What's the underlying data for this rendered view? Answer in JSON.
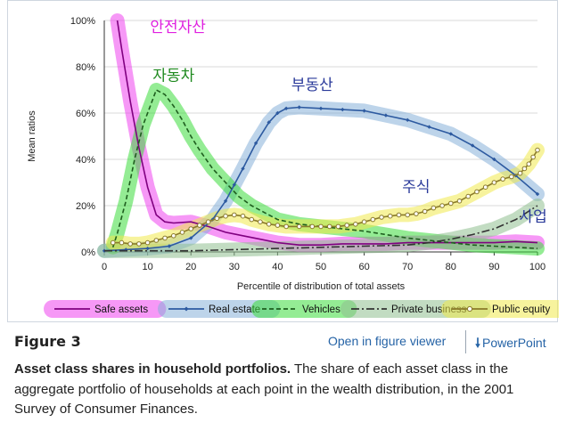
{
  "chart_data": {
    "type": "line",
    "title": "",
    "xlabel": "Percentile of distribution of total assets",
    "ylabel": "Mean ratios",
    "xlim": [
      0,
      100
    ],
    "ylim": [
      0,
      100
    ],
    "x_ticks": [
      "0",
      "10",
      "20",
      "30",
      "40",
      "50",
      "60",
      "70",
      "80",
      "90",
      "100"
    ],
    "y_ticks": [
      "0%",
      "20%",
      "40%",
      "60%",
      "80%",
      "100%"
    ],
    "series": [
      {
        "name": "Safe assets",
        "color": "#800080",
        "highlight": "#ee44ee",
        "style": "solid",
        "points": [
          [
            3,
            100
          ],
          [
            4,
            88
          ],
          [
            6,
            65
          ],
          [
            8,
            45
          ],
          [
            10,
            28
          ],
          [
            12,
            16
          ],
          [
            14,
            13
          ],
          [
            16,
            12.5
          ],
          [
            20,
            13
          ],
          [
            24,
            11
          ],
          [
            28,
            8.5
          ],
          [
            32,
            7
          ],
          [
            36,
            5.5
          ],
          [
            40,
            4
          ],
          [
            45,
            3
          ],
          [
            50,
            3
          ],
          [
            55,
            3.5
          ],
          [
            60,
            3.5
          ],
          [
            65,
            3.5
          ],
          [
            70,
            4
          ],
          [
            75,
            4
          ],
          [
            80,
            4
          ],
          [
            85,
            4
          ],
          [
            90,
            4
          ],
          [
            95,
            4.5
          ],
          [
            100,
            4
          ]
        ]
      },
      {
        "name": "Real estate",
        "color": "#2d5aa0",
        "highlight": "#86b0d8",
        "style": "diamond",
        "points": [
          [
            0,
            0.5
          ],
          [
            5,
            1
          ],
          [
            10,
            1.5
          ],
          [
            15,
            2.5
          ],
          [
            20,
            6
          ],
          [
            25,
            14
          ],
          [
            28,
            22
          ],
          [
            30,
            29
          ],
          [
            32,
            36
          ],
          [
            35,
            47
          ],
          [
            38,
            56
          ],
          [
            40,
            60
          ],
          [
            42,
            62
          ],
          [
            45,
            62.5
          ],
          [
            50,
            62
          ],
          [
            55,
            61.5
          ],
          [
            60,
            61
          ],
          [
            65,
            59
          ],
          [
            70,
            57
          ],
          [
            75,
            54
          ],
          [
            80,
            51
          ],
          [
            85,
            46
          ],
          [
            90,
            40
          ],
          [
            95,
            33
          ],
          [
            100,
            25
          ]
        ]
      },
      {
        "name": "Vehicles",
        "color": "#1e5e1e",
        "highlight": "#3ddc3d",
        "style": "dashed",
        "points": [
          [
            2,
            2
          ],
          [
            3,
            8
          ],
          [
            5,
            22
          ],
          [
            7,
            40
          ],
          [
            9,
            55
          ],
          [
            11,
            65
          ],
          [
            12,
            70
          ],
          [
            14,
            68
          ],
          [
            16,
            63
          ],
          [
            18,
            57
          ],
          [
            20,
            50
          ],
          [
            22,
            44
          ],
          [
            25,
            36
          ],
          [
            28,
            30
          ],
          [
            31,
            24
          ],
          [
            34,
            20
          ],
          [
            37,
            17
          ],
          [
            40,
            14
          ],
          [
            45,
            12
          ],
          [
            50,
            11
          ],
          [
            55,
            10
          ],
          [
            60,
            9
          ],
          [
            65,
            7.5
          ],
          [
            70,
            6
          ],
          [
            75,
            5
          ],
          [
            80,
            4
          ],
          [
            85,
            3
          ],
          [
            90,
            2.5
          ],
          [
            95,
            2
          ],
          [
            100,
            1.5
          ]
        ]
      },
      {
        "name": "Private business",
        "color": "#333333",
        "highlight": "#8fbf8f",
        "style": "dashdot",
        "points": [
          [
            0,
            0.5
          ],
          [
            10,
            0.5
          ],
          [
            20,
            0.5
          ],
          [
            30,
            1
          ],
          [
            40,
            1.5
          ],
          [
            50,
            2
          ],
          [
            60,
            2.5
          ],
          [
            70,
            3
          ],
          [
            75,
            4
          ],
          [
            80,
            5.5
          ],
          [
            85,
            7.5
          ],
          [
            90,
            10
          ],
          [
            95,
            14
          ],
          [
            100,
            20
          ]
        ]
      },
      {
        "name": "Public equity",
        "color": "#8a7a2a",
        "highlight": "#f1e94c",
        "style": "circle",
        "points": [
          [
            2,
            4
          ],
          [
            4,
            4
          ],
          [
            6,
            3.5
          ],
          [
            8,
            3.5
          ],
          [
            10,
            4
          ],
          [
            12,
            5
          ],
          [
            14,
            6
          ],
          [
            16,
            7
          ],
          [
            18,
            8.5
          ],
          [
            20,
            10
          ],
          [
            22,
            11.5
          ],
          [
            24,
            13
          ],
          [
            26,
            14.5
          ],
          [
            28,
            15.5
          ],
          [
            30,
            16
          ],
          [
            32,
            15.5
          ],
          [
            34,
            14
          ],
          [
            36,
            13
          ],
          [
            38,
            12
          ],
          [
            40,
            11.5
          ],
          [
            42,
            11
          ],
          [
            45,
            11
          ],
          [
            48,
            11
          ],
          [
            50,
            11
          ],
          [
            52,
            11
          ],
          [
            54,
            11
          ],
          [
            56,
            11.5
          ],
          [
            58,
            12
          ],
          [
            60,
            13
          ],
          [
            62,
            14
          ],
          [
            64,
            15
          ],
          [
            66,
            15.5
          ],
          [
            68,
            16
          ],
          [
            70,
            16
          ],
          [
            72,
            16.5
          ],
          [
            74,
            17.5
          ],
          [
            76,
            19
          ],
          [
            78,
            20
          ],
          [
            80,
            21
          ],
          [
            82,
            22
          ],
          [
            84,
            24
          ],
          [
            86,
            26
          ],
          [
            88,
            28
          ],
          [
            90,
            30
          ],
          [
            92,
            31.5
          ],
          [
            94,
            32.5
          ],
          [
            96,
            34
          ],
          [
            97,
            36
          ],
          [
            98,
            38
          ],
          [
            99,
            41
          ],
          [
            100,
            44
          ]
        ]
      }
    ],
    "annotations": [
      {
        "name": "safe-assets-korean-label",
        "text": "안전자산",
        "color": "#e020e0",
        "x": 17,
        "y": 95
      },
      {
        "name": "vehicles-korean-label",
        "text": "자동차",
        "color": "#1f8a1f",
        "x": 16,
        "y": 74
      },
      {
        "name": "real-estate-korean-label",
        "text": "부동산",
        "color": "#2a3a9a",
        "x": 48,
        "y": 70
      },
      {
        "name": "stocks-korean-label",
        "text": "주식",
        "color": "#2a3a9a",
        "x": 72,
        "y": 26
      },
      {
        "name": "business-korean-label",
        "text": "사업",
        "color": "#2a3a9a",
        "x": 99,
        "y": 13
      }
    ]
  },
  "figure": {
    "label": "Figure 3",
    "open_viewer_label": "Open in figure viewer",
    "powerpoint_label": "PowerPoint",
    "powerpoint_icon": "download-icon",
    "caption_title": "Asset class shares in household portfolios.",
    "caption_body": " The share of each asset class in the aggregate portfolio of households at each point in the wealth distribution, in the 2001 Survey of Consumer Finances."
  }
}
